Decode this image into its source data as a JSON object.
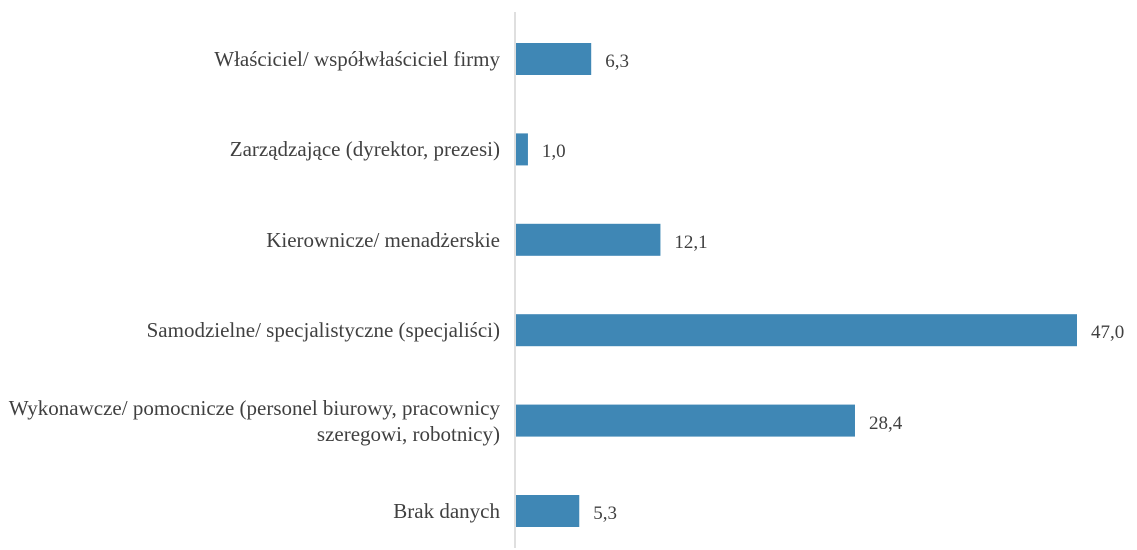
{
  "chart_data": {
    "type": "bar",
    "orientation": "horizontal",
    "categories": [
      "Właściciel/ współwłaściciel firmy",
      "Zarządzające (dyrektor, prezesi)",
      "Kierownicze/ menadżerskie",
      "Samodzielne/ specjalistyczne (specjaliści)",
      "Wykonawcze/ pomocnicze (personel biurowy, pracownicy szeregowi, robotnicy)",
      "Brak danych"
    ],
    "values": [
      6.3,
      1.0,
      12.1,
      47.0,
      28.4,
      5.3
    ],
    "value_labels": [
      "6,3",
      "1,0",
      "12,1",
      "47,0",
      "28,4",
      "5,3"
    ],
    "color": "#3f87b5"
  }
}
